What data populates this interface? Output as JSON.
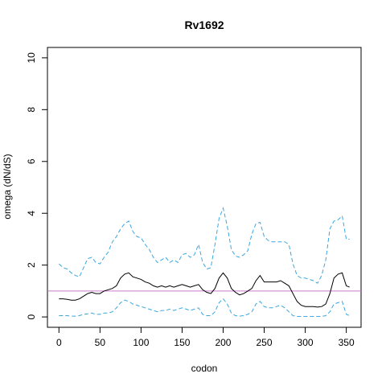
{
  "chart_data": {
    "type": "line",
    "title": "Rv1692",
    "xlabel": "codon",
    "ylabel": "omega (dN/dS)",
    "xlim": [
      -14,
      368
    ],
    "ylim": [
      -0.4,
      10.4
    ],
    "xticks": [
      0,
      50,
      100,
      150,
      200,
      250,
      300,
      350
    ],
    "yticks": [
      0,
      2,
      4,
      6,
      8,
      10
    ],
    "reference_line": {
      "y": 1,
      "color": "#c77cc7"
    },
    "colors": {
      "mean": "#000000",
      "bounds": "#3aa7e0"
    },
    "series": [
      {
        "style": "solid",
        "color": "#000000",
        "x": [
          0,
          5,
          10,
          15,
          20,
          25,
          30,
          35,
          40,
          45,
          50,
          55,
          60,
          65,
          70,
          75,
          80,
          85,
          90,
          95,
          100,
          105,
          110,
          115,
          120,
          125,
          130,
          135,
          140,
          145,
          150,
          155,
          160,
          165,
          170,
          175,
          180,
          185,
          190,
          195,
          200,
          205,
          210,
          215,
          220,
          225,
          230,
          235,
          240,
          245,
          250,
          255,
          260,
          265,
          270,
          275,
          280,
          285,
          290,
          295,
          300,
          305,
          310,
          315,
          320,
          325,
          330,
          335,
          340,
          345,
          350,
          354
        ],
        "y": [
          0.7,
          0.7,
          0.68,
          0.65,
          0.65,
          0.7,
          0.8,
          0.9,
          0.95,
          0.9,
          0.9,
          1.0,
          1.05,
          1.1,
          1.2,
          1.5,
          1.65,
          1.7,
          1.55,
          1.5,
          1.45,
          1.35,
          1.3,
          1.2,
          1.15,
          1.2,
          1.15,
          1.2,
          1.15,
          1.2,
          1.25,
          1.2,
          1.15,
          1.2,
          1.25,
          1.05,
          0.95,
          0.9,
          1.1,
          1.5,
          1.7,
          1.5,
          1.1,
          0.95,
          0.85,
          0.9,
          1.0,
          1.1,
          1.4,
          1.6,
          1.35,
          1.35,
          1.35,
          1.35,
          1.4,
          1.3,
          1.2,
          0.9,
          0.6,
          0.45,
          0.4,
          0.4,
          0.4,
          0.38,
          0.4,
          0.5,
          0.9,
          1.5,
          1.65,
          1.7,
          1.2,
          1.15
        ]
      },
      {
        "style": "dashed",
        "color": "#3aa7e0",
        "x": [
          0,
          5,
          10,
          15,
          20,
          25,
          30,
          35,
          40,
          45,
          50,
          55,
          60,
          65,
          70,
          75,
          80,
          85,
          90,
          95,
          100,
          105,
          110,
          115,
          120,
          125,
          130,
          135,
          140,
          145,
          150,
          155,
          160,
          165,
          170,
          175,
          180,
          185,
          190,
          195,
          200,
          205,
          210,
          215,
          220,
          225,
          230,
          235,
          240,
          245,
          250,
          255,
          260,
          265,
          270,
          275,
          280,
          285,
          290,
          295,
          300,
          305,
          310,
          315,
          320,
          325,
          330,
          335,
          340,
          345,
          350,
          354
        ],
        "y": [
          2.05,
          1.9,
          1.85,
          1.7,
          1.6,
          1.55,
          1.9,
          2.25,
          2.3,
          2.1,
          2.05,
          2.3,
          2.5,
          2.9,
          3.1,
          3.4,
          3.6,
          3.7,
          3.3,
          3.1,
          3.05,
          2.8,
          2.6,
          2.3,
          2.1,
          2.2,
          2.3,
          2.1,
          2.2,
          2.1,
          2.4,
          2.45,
          2.3,
          2.4,
          2.8,
          2.1,
          1.85,
          1.9,
          2.8,
          3.8,
          4.2,
          3.5,
          2.6,
          2.35,
          2.3,
          2.4,
          2.55,
          3.2,
          3.6,
          3.65,
          3.1,
          2.95,
          2.9,
          2.9,
          2.9,
          2.9,
          2.8,
          2.05,
          1.6,
          1.5,
          1.5,
          1.45,
          1.4,
          1.3,
          1.6,
          2.2,
          3.4,
          3.7,
          3.75,
          3.9,
          3.0,
          3.0
        ]
      },
      {
        "style": "dashed",
        "color": "#3aa7e0",
        "x": [
          0,
          5,
          10,
          15,
          20,
          25,
          30,
          35,
          40,
          45,
          50,
          55,
          60,
          65,
          70,
          75,
          80,
          85,
          90,
          95,
          100,
          105,
          110,
          115,
          120,
          125,
          130,
          135,
          140,
          145,
          150,
          155,
          160,
          165,
          170,
          175,
          180,
          185,
          190,
          195,
          200,
          205,
          210,
          215,
          220,
          225,
          230,
          235,
          240,
          245,
          250,
          255,
          260,
          265,
          270,
          275,
          280,
          285,
          290,
          295,
          300,
          305,
          310,
          315,
          320,
          325,
          330,
          335,
          340,
          345,
          350,
          354
        ],
        "y": [
          0.05,
          0.05,
          0.05,
          0.03,
          0.03,
          0.05,
          0.1,
          0.12,
          0.15,
          0.1,
          0.1,
          0.15,
          0.15,
          0.2,
          0.35,
          0.55,
          0.65,
          0.6,
          0.5,
          0.45,
          0.4,
          0.35,
          0.3,
          0.25,
          0.2,
          0.25,
          0.25,
          0.3,
          0.25,
          0.3,
          0.35,
          0.3,
          0.25,
          0.3,
          0.35,
          0.1,
          0.05,
          0.05,
          0.2,
          0.55,
          0.7,
          0.5,
          0.15,
          0.05,
          0.03,
          0.05,
          0.1,
          0.2,
          0.5,
          0.6,
          0.4,
          0.35,
          0.35,
          0.4,
          0.45,
          0.35,
          0.2,
          0.05,
          0.02,
          0.02,
          0.02,
          0.02,
          0.02,
          0.02,
          0.02,
          0.05,
          0.2,
          0.5,
          0.55,
          0.6,
          0.1,
          0.05
        ]
      }
    ]
  }
}
